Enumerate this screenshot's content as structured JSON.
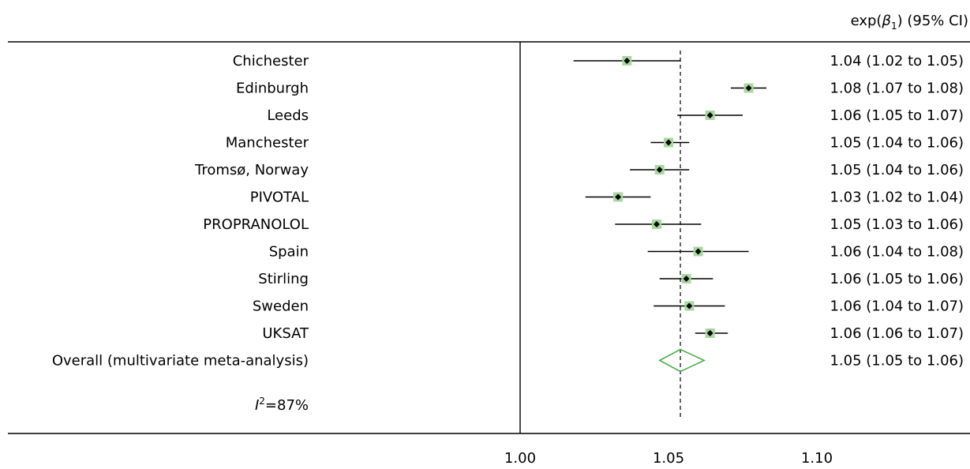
{
  "chart_data": {
    "type": "forest",
    "column_header": "exp(β₁) (95% CI)",
    "column_header_parts": {
      "prefix": "exp(",
      "symbol": "β",
      "subscript": "1",
      "suffix": ") (95% CI)"
    },
    "studies": [
      {
        "name": "Chichester",
        "estimate": 1.036,
        "lower": 1.018,
        "upper": 1.054,
        "ci_text": "1.04 (1.02 to 1.05)"
      },
      {
        "name": "Edinburgh",
        "estimate": 1.077,
        "lower": 1.071,
        "upper": 1.083,
        "ci_text": "1.08 (1.07 to 1.08)"
      },
      {
        "name": "Leeds",
        "estimate": 1.064,
        "lower": 1.053,
        "upper": 1.075,
        "ci_text": "1.06 (1.05 to 1.07)"
      },
      {
        "name": "Manchester",
        "estimate": 1.05,
        "lower": 1.044,
        "upper": 1.057,
        "ci_text": "1.05 (1.04 to 1.06)"
      },
      {
        "name": "Tromsø, Norway",
        "estimate": 1.047,
        "lower": 1.037,
        "upper": 1.057,
        "ci_text": "1.05 (1.04 to 1.06)"
      },
      {
        "name": "PIVOTAL",
        "estimate": 1.033,
        "lower": 1.022,
        "upper": 1.044,
        "ci_text": "1.03 (1.02 to 1.04)"
      },
      {
        "name": "PROPRANOLOL",
        "estimate": 1.046,
        "lower": 1.032,
        "upper": 1.061,
        "ci_text": "1.05 (1.03 to 1.06)"
      },
      {
        "name": "Spain",
        "estimate": 1.06,
        "lower": 1.043,
        "upper": 1.077,
        "ci_text": "1.06 (1.04 to 1.08)"
      },
      {
        "name": "Stirling",
        "estimate": 1.056,
        "lower": 1.047,
        "upper": 1.065,
        "ci_text": "1.06 (1.05 to 1.06)"
      },
      {
        "name": "Sweden",
        "estimate": 1.057,
        "lower": 1.045,
        "upper": 1.069,
        "ci_text": "1.06 (1.04 to 1.07)"
      },
      {
        "name": "UKSAT",
        "estimate": 1.064,
        "lower": 1.059,
        "upper": 1.07,
        "ci_text": "1.06 (1.06 to 1.07)"
      }
    ],
    "overall": {
      "name": "Overall (multivariate meta-analysis)",
      "estimate": 1.054,
      "lower": 1.047,
      "upper": 1.062,
      "ci_text": "1.05 (1.05 to 1.06)"
    },
    "heterogeneity": {
      "symbol": "I",
      "superscript": "2",
      "text": "=87%"
    },
    "reference_line": 1.054,
    "x_ticks": [
      1.0,
      1.05,
      1.1
    ],
    "x_tick_labels": [
      "1.00",
      "1.05",
      "1.10"
    ],
    "xlim": [
      1.0,
      1.1485
    ],
    "colors": {
      "marker_square": "#a8d8a0",
      "marker_point": "#000000",
      "diamond": "#4caf50",
      "lines": "#000000"
    }
  }
}
